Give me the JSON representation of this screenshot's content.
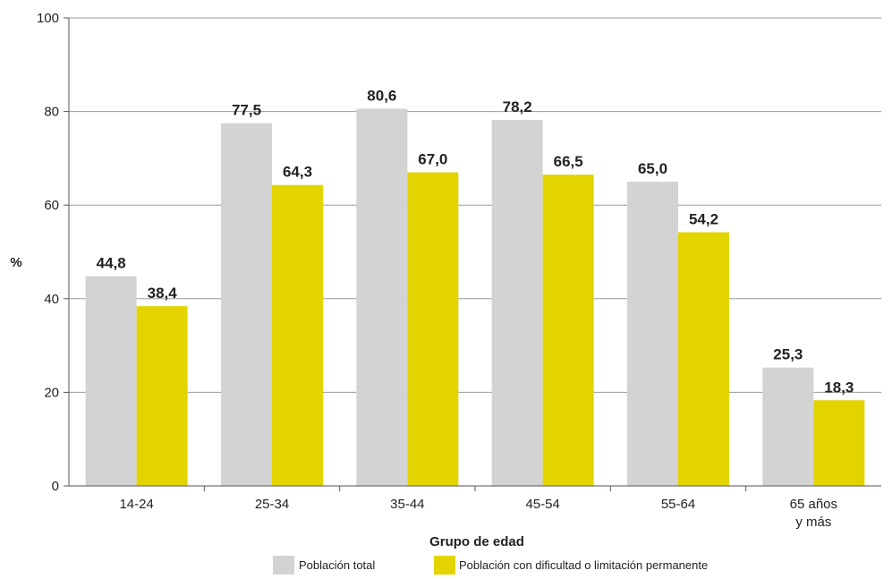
{
  "chart_data": {
    "type": "bar",
    "title": "",
    "xlabel": "Grupo de edad",
    "ylabel": "%",
    "ylim": [
      0,
      100
    ],
    "yticks": [
      0,
      20,
      40,
      60,
      80,
      100
    ],
    "grid": true,
    "legend_position": "bottom",
    "categories": [
      [
        "14-24"
      ],
      [
        "25-34"
      ],
      [
        "35-44"
      ],
      [
        "45-54"
      ],
      [
        "55-64"
      ],
      [
        "65 años",
        "y más"
      ]
    ],
    "series": [
      {
        "name": "Población total",
        "color": "#d3d3d3",
        "values": [
          44.8,
          77.5,
          80.6,
          78.2,
          65.0,
          25.3
        ],
        "labels": [
          "44,8",
          "77,5",
          "80,6",
          "78,2",
          "65,0",
          "25,3"
        ]
      },
      {
        "name": "Población con dificultad o limitación permanente",
        "color": "#e3d400",
        "values": [
          38.4,
          64.3,
          67.0,
          66.5,
          54.2,
          18.3
        ],
        "labels": [
          "38,4",
          "64,3",
          "67,0",
          "66,5",
          "54,2",
          "18,3"
        ]
      }
    ]
  }
}
